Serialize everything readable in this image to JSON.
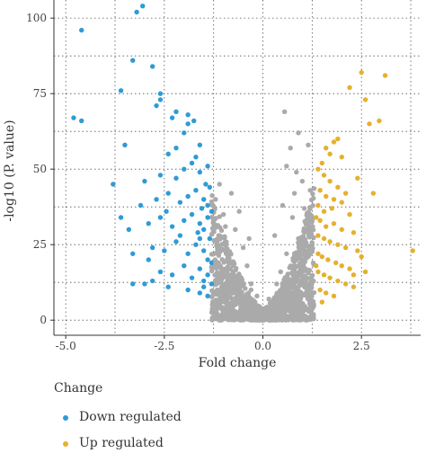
{
  "chart_data": {
    "type": "scatter",
    "title": "",
    "xlabel": "Fold change",
    "ylabel": "-log10 (P. value)",
    "xlim": [
      -5.3,
      4.0
    ],
    "ylim": [
      -5,
      106
    ],
    "x_ticks": [
      -5.0,
      -2.5,
      0.0,
      2.5
    ],
    "x_tick_labels": [
      "-5.0",
      "-2.5",
      "0.0",
      "2.5"
    ],
    "y_ticks": [
      0,
      25,
      50,
      75,
      100
    ],
    "y_tick_labels": [
      "0",
      "25",
      "50",
      "75",
      "100"
    ],
    "grid": true,
    "legend": {
      "title": "Change",
      "placement": "bottom",
      "entries": [
        "Down regulated",
        "Up regulated"
      ]
    },
    "series": [
      {
        "name": "Down regulated",
        "color": "#2f9bd6",
        "points": [
          [
            -4.6,
            96
          ],
          [
            -4.8,
            67
          ],
          [
            -4.6,
            66
          ],
          [
            -3.2,
            102
          ],
          [
            -3.05,
            104
          ],
          [
            -3.3,
            86
          ],
          [
            -3.6,
            76
          ],
          [
            -2.8,
            84
          ],
          [
            -2.6,
            73
          ],
          [
            -2.6,
            75
          ],
          [
            -2.7,
            71
          ],
          [
            -2.2,
            69
          ],
          [
            -2.3,
            67
          ],
          [
            -1.9,
            65
          ],
          [
            -1.9,
            68
          ],
          [
            -1.75,
            66
          ],
          [
            -3.5,
            58
          ],
          [
            -2.0,
            62
          ],
          [
            -2.2,
            57
          ],
          [
            -2.4,
            55
          ],
          [
            -1.6,
            58
          ],
          [
            -1.7,
            54
          ],
          [
            -3.8,
            45
          ],
          [
            -3.0,
            46
          ],
          [
            -2.6,
            48
          ],
          [
            -2.0,
            50
          ],
          [
            -2.2,
            47
          ],
          [
            -1.8,
            52
          ],
          [
            -1.6,
            49
          ],
          [
            -1.4,
            51
          ],
          [
            -3.1,
            38
          ],
          [
            -2.7,
            40
          ],
          [
            -2.4,
            42
          ],
          [
            -2.1,
            39
          ],
          [
            -1.9,
            41
          ],
          [
            -1.7,
            43
          ],
          [
            -1.5,
            40
          ],
          [
            -1.4,
            38
          ],
          [
            -3.4,
            30
          ],
          [
            -2.9,
            32
          ],
          [
            -2.6,
            34
          ],
          [
            -2.3,
            31
          ],
          [
            -2.0,
            33
          ],
          [
            -1.8,
            35
          ],
          [
            -1.6,
            32
          ],
          [
            -1.5,
            30
          ],
          [
            -1.4,
            34
          ],
          [
            -3.3,
            22
          ],
          [
            -2.8,
            24
          ],
          [
            -2.5,
            23
          ],
          [
            -2.2,
            26
          ],
          [
            -1.9,
            22
          ],
          [
            -1.7,
            25
          ],
          [
            -1.6,
            27
          ],
          [
            -1.5,
            23
          ],
          [
            -1.4,
            20
          ],
          [
            -2.6,
            16
          ],
          [
            -2.3,
            15
          ],
          [
            -2.0,
            18
          ],
          [
            -1.8,
            14
          ],
          [
            -1.6,
            17
          ],
          [
            -1.5,
            13
          ],
          [
            -1.4,
            15
          ],
          [
            -3.3,
            12
          ],
          [
            -3.0,
            12
          ],
          [
            -2.8,
            13
          ],
          [
            -2.4,
            11
          ],
          [
            -1.9,
            10
          ],
          [
            -1.6,
            9
          ],
          [
            -1.5,
            11
          ],
          [
            -1.4,
            8
          ],
          [
            -1.3,
            12
          ],
          [
            -1.35,
            27
          ],
          [
            -1.3,
            36
          ],
          [
            -1.35,
            44
          ],
          [
            -1.45,
            45
          ],
          [
            -1.3,
            19
          ],
          [
            -1.55,
            37
          ],
          [
            -1.65,
            29
          ],
          [
            -2.1,
            28
          ],
          [
            -2.45,
            36
          ],
          [
            -2.9,
            20
          ],
          [
            -3.6,
            34
          ]
        ]
      },
      {
        "name": "Up regulated",
        "color": "#e5b12d",
        "points": [
          [
            3.1,
            81
          ],
          [
            2.5,
            82
          ],
          [
            2.2,
            77
          ],
          [
            2.6,
            73
          ],
          [
            2.95,
            66
          ],
          [
            2.7,
            65
          ],
          [
            1.9,
            60
          ],
          [
            1.8,
            59
          ],
          [
            1.6,
            57
          ],
          [
            1.7,
            55
          ],
          [
            2.0,
            54
          ],
          [
            1.5,
            52
          ],
          [
            2.4,
            47
          ],
          [
            2.8,
            42
          ],
          [
            1.4,
            50
          ],
          [
            1.55,
            48
          ],
          [
            1.7,
            46
          ],
          [
            1.9,
            44
          ],
          [
            1.45,
            43
          ],
          [
            1.6,
            41
          ],
          [
            1.8,
            40
          ],
          [
            2.1,
            42
          ],
          [
            1.4,
            38
          ],
          [
            1.55,
            36
          ],
          [
            1.75,
            37
          ],
          [
            2.0,
            39
          ],
          [
            2.2,
            35
          ],
          [
            1.45,
            33
          ],
          [
            1.6,
            31
          ],
          [
            1.8,
            32
          ],
          [
            2.0,
            30
          ],
          [
            2.3,
            29
          ],
          [
            1.4,
            28
          ],
          [
            1.55,
            27
          ],
          [
            1.7,
            26
          ],
          [
            1.9,
            25
          ],
          [
            2.1,
            24
          ],
          [
            2.4,
            23
          ],
          [
            1.4,
            22
          ],
          [
            1.5,
            21
          ],
          [
            1.65,
            20
          ],
          [
            1.85,
            19
          ],
          [
            2.0,
            18
          ],
          [
            2.2,
            17
          ],
          [
            2.6,
            16
          ],
          [
            1.4,
            16
          ],
          [
            1.55,
            15
          ],
          [
            1.7,
            14
          ],
          [
            1.9,
            13
          ],
          [
            2.1,
            12
          ],
          [
            2.3,
            11
          ],
          [
            1.45,
            10
          ],
          [
            1.6,
            9
          ],
          [
            1.8,
            8
          ],
          [
            1.5,
            6
          ],
          [
            3.8,
            23
          ],
          [
            2.3,
            15
          ],
          [
            1.35,
            34
          ],
          [
            1.35,
            18
          ],
          [
            2.5,
            21
          ]
        ]
      },
      {
        "name": "",
        "color": "#aaaaaa",
        "points": [
          [
            0.55,
            69
          ],
          [
            0.9,
            62
          ],
          [
            0.7,
            57
          ],
          [
            0.6,
            51
          ],
          [
            1.15,
            58
          ],
          [
            0.85,
            49
          ],
          [
            1.0,
            46
          ],
          [
            1.2,
            43
          ],
          [
            -0.8,
            42
          ],
          [
            -0.6,
            36
          ],
          [
            -1.0,
            35
          ],
          [
            -0.7,
            30
          ],
          [
            -1.1,
            28
          ],
          [
            -0.5,
            24
          ],
          [
            -0.9,
            22
          ],
          [
            -0.4,
            18
          ],
          [
            -0.75,
            16
          ],
          [
            -1.05,
            14
          ],
          [
            -0.3,
            12
          ],
          [
            -0.6,
            9
          ],
          [
            -0.9,
            7
          ],
          [
            -0.2,
            6
          ],
          [
            -0.45,
            4
          ],
          [
            -0.1,
            3
          ],
          [
            0.0,
            1
          ],
          [
            0.1,
            2
          ],
          [
            0.25,
            4
          ],
          [
            0.4,
            6
          ],
          [
            0.55,
            9
          ],
          [
            0.7,
            12
          ],
          [
            0.85,
            15
          ],
          [
            1.0,
            18
          ],
          [
            1.15,
            21
          ],
          [
            0.6,
            22
          ],
          [
            0.9,
            27
          ],
          [
            1.2,
            30
          ],
          [
            0.75,
            34
          ],
          [
            1.05,
            37
          ],
          [
            0.5,
            38
          ],
          [
            1.25,
            25
          ],
          [
            -1.25,
            9
          ],
          [
            -1.2,
            19
          ],
          [
            -1.15,
            24
          ],
          [
            -1.25,
            33
          ],
          [
            -1.2,
            40
          ],
          [
            0.35,
            12
          ],
          [
            -0.3,
            10
          ],
          [
            0.15,
            7
          ],
          [
            -0.15,
            8
          ],
          [
            0.8,
            42
          ],
          [
            0.95,
            8
          ],
          [
            -0.85,
            11
          ],
          [
            -0.55,
            14
          ],
          [
            0.45,
            16
          ],
          [
            1.1,
            11
          ],
          [
            -0.95,
            31
          ],
          [
            1.2,
            35
          ],
          [
            -1.1,
            45
          ],
          [
            0.3,
            28
          ],
          [
            -0.35,
            27
          ]
        ]
      }
    ]
  }
}
